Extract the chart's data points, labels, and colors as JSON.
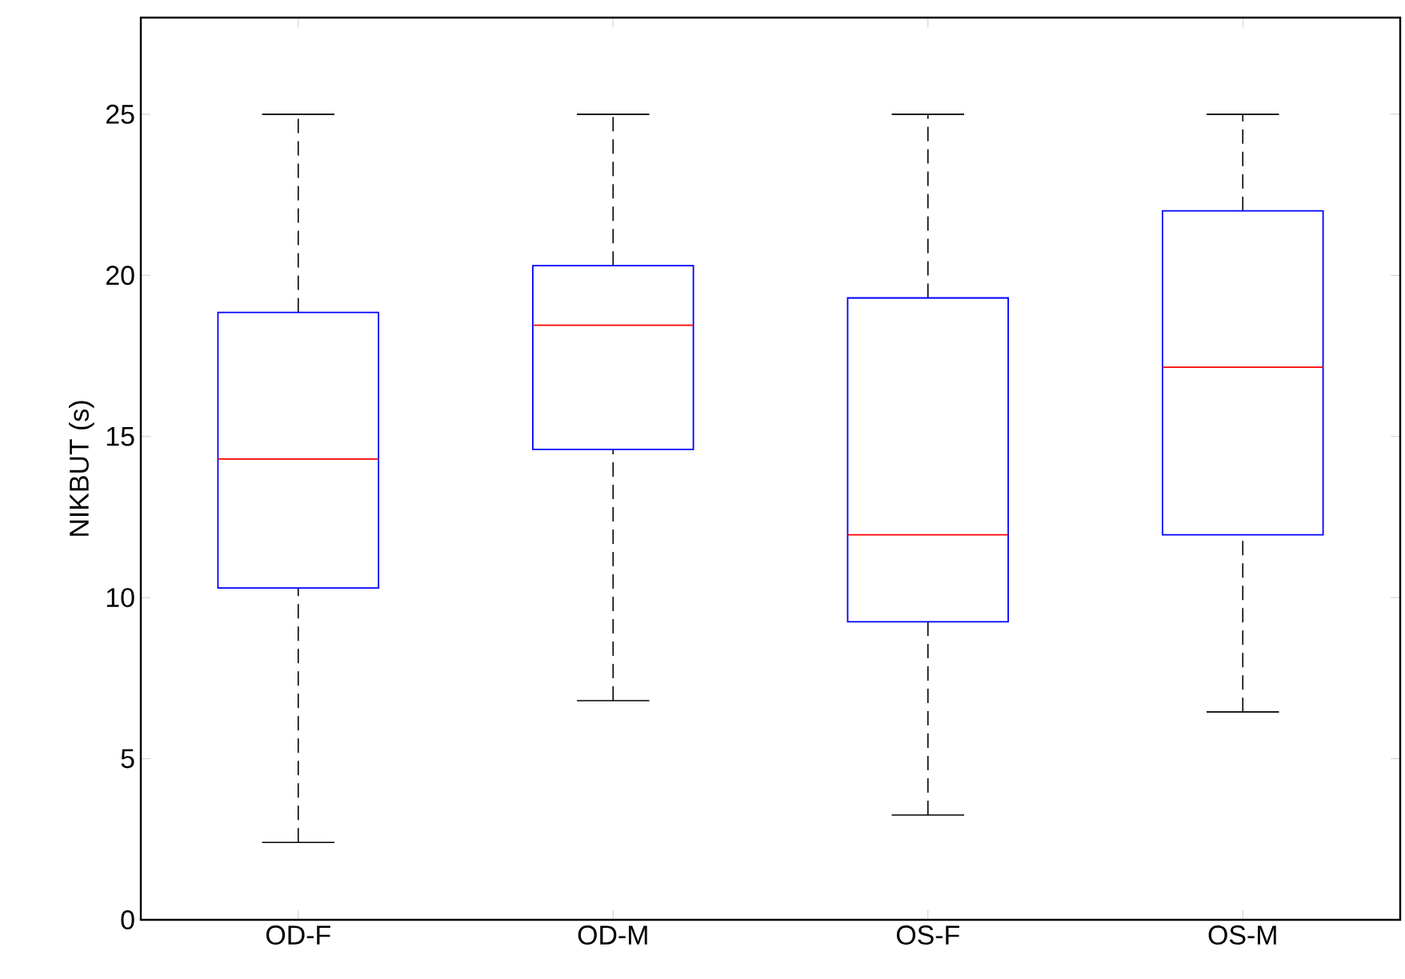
{
  "chart_data": {
    "type": "box",
    "ylabel": "NIKBUT (s)",
    "categories": [
      "OD-F",
      "OD-M",
      "OS-F",
      "OS-M"
    ],
    "color": "#0000ff",
    "boxes": [
      {
        "low": 2.4,
        "q1": 10.3,
        "median": 14.3,
        "q3": 18.85,
        "high": 25
      },
      {
        "low": 6.8,
        "q1": 14.6,
        "median": 18.45,
        "q3": 20.3,
        "high": 25
      },
      {
        "low": 3.25,
        "q1": 9.25,
        "median": 11.95,
        "q3": 19.3,
        "high": 25
      },
      {
        "low": 6.45,
        "q1": 11.95,
        "median": 17.15,
        "q3": 22,
        "high": 25
      }
    ],
    "ylim": [
      0,
      28
    ],
    "yticks": [
      0,
      5,
      10,
      15,
      20,
      25
    ],
    "grid": false
  }
}
